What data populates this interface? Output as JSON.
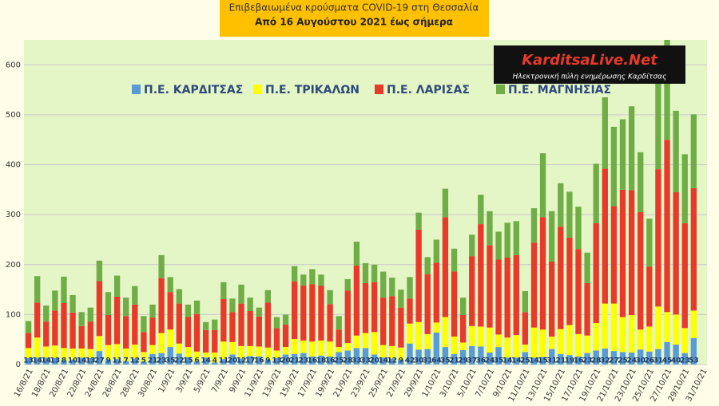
{
  "chart_data": {
    "type": "stacked_bar",
    "title": "Επιβεβαιωμένα κρούσματα COVID-19 στη Θεσσαλία",
    "subtitle": "Από 16 Αυγούστου 2021 έως σήμερα",
    "categories": [
      "16/8/21",
      null,
      "18/8/21",
      null,
      "20/8/21",
      null,
      "22/8/21",
      null,
      "24/8/21",
      null,
      "26/8/21",
      null,
      "28/8/21",
      null,
      "30/8/21",
      null,
      "1/9/21",
      null,
      "3/9/21",
      null,
      "5/9/21",
      null,
      "7/9/21",
      null,
      "9/9/21",
      null,
      "11/9/21",
      null,
      "13/9/21",
      null,
      "15/9/21",
      null,
      "17/9/21",
      null,
      "19/9/21",
      null,
      "21/9/21",
      null,
      "23/9/21",
      null,
      "25/9/21",
      null,
      "27/9/21",
      null,
      "29/9/21",
      null,
      "1/10/21",
      null,
      "3/10/21",
      null,
      "5/10/21",
      null,
      "7/10/21",
      null,
      "9/10/21",
      null,
      "11/10/21",
      null,
      "13/10/21",
      null,
      "15/10/21",
      null,
      "17/10/21",
      null,
      "19/10/21",
      null,
      "21/10/21",
      null,
      "23/10/21",
      null,
      "25/10/21",
      null,
      "27/10/21",
      null,
      "29/10/21",
      null,
      "31/10/21"
    ],
    "series": [
      {
        "name": "Π.Ε. ΚΑΡΔΙΤΣΑΣ",
        "color": "#5b9bd5",
        "labels": true,
        "values": [
          13,
          14,
          14,
          13,
          8,
          10,
          14,
          13,
          27,
          9,
          11,
          7,
          12,
          5,
          21,
          23,
          35,
          22,
          15,
          6,
          14,
          4,
          11,
          20,
          12,
          17,
          16,
          9,
          13,
          20,
          21,
          23,
          16,
          18,
          16,
          25,
          28,
          33,
          33,
          20,
          14,
          12,
          9,
          42,
          30,
          31,
          64,
          35,
          21,
          29,
          37,
          36,
          24,
          35,
          14,
          14,
          25,
          14,
          15,
          31,
          21,
          19,
          16,
          23,
          28,
          32,
          27,
          25,
          24,
          30,
          26,
          31,
          45,
          40,
          23,
          53,
          null
        ]
      },
      {
        "name": "Π.Ε. ΤΡΙΚΑΛΩΝ",
        "color": "#ffff00",
        "values": [
          20,
          40,
          22,
          25,
          25,
          22,
          18,
          18,
          30,
          30,
          30,
          25,
          28,
          20,
          18,
          40,
          35,
          20,
          20,
          20,
          10,
          20,
          35,
          25,
          25,
          20,
          20,
          25,
          15,
          15,
          30,
          25,
          30,
          30,
          30,
          10,
          15,
          25,
          30,
          45,
          25,
          25,
          25,
          40,
          55,
          30,
          20,
          60,
          35,
          15,
          40,
          40,
          50,
          25,
          40,
          45,
          15,
          60,
          55,
          25,
          50,
          60,
          45,
          35,
          55,
          90,
          95,
          70,
          75,
          40,
          50,
          85,
          60,
          60,
          50,
          55,
          null
        ]
      },
      {
        "name": "Π.Ε. ΛΑΡΙΣΑΣ",
        "color": "#e83a2a",
        "values": [
          30,
          70,
          50,
          70,
          90,
          72,
          45,
          55,
          110,
          60,
          95,
          65,
          80,
          40,
          55,
          110,
          75,
          80,
          60,
          75,
          45,
          45,
          85,
          60,
          85,
          70,
          60,
          90,
          45,
          45,
          115,
          110,
          115,
          110,
          75,
          35,
          105,
          140,
          100,
          100,
          95,
          100,
          80,
          50,
          185,
          120,
          120,
          200,
          130,
          55,
          140,
          205,
          165,
          150,
          160,
          160,
          65,
          170,
          225,
          150,
          205,
          175,
          170,
          105,
          200,
          270,
          195,
          255,
          250,
          235,
          120,
          275,
          345,
          245,
          210,
          245,
          null
        ]
      },
      {
        "name": "Π.Ε. ΜΑΓΝΗΣΙΑΣ",
        "color": "#70ad47",
        "values": [
          24,
          53,
          32,
          40,
          53,
          35,
          28,
          28,
          41,
          46,
          42,
          37,
          37,
          32,
          26,
          46,
          30,
          29,
          25,
          27,
          16,
          21,
          34,
          27,
          38,
          27,
          18,
          25,
          22,
          20,
          31,
          22,
          30,
          22,
          28,
          27,
          23,
          48,
          40,
          35,
          52,
          37,
          36,
          43,
          34,
          34,
          46,
          57,
          46,
          35,
          43,
          59,
          68,
          56,
          70,
          68,
          42,
          69,
          128,
          101,
          87,
          92,
          85,
          61,
          119,
          143,
          159,
          141,
          168,
          120,
          96,
          182,
          200,
          163,
          138,
          148,
          null
        ]
      }
    ],
    "ylim": [
      0,
      650
    ],
    "yticks": [
      0,
      100,
      200,
      300,
      400,
      500,
      600
    ],
    "grid": true,
    "legend": "top"
  },
  "logo": {
    "title": "KarditsaLive.Net",
    "subtitle": "Ηλεκτρονική πύλη ενημέρωσης Καρδίτσας"
  }
}
